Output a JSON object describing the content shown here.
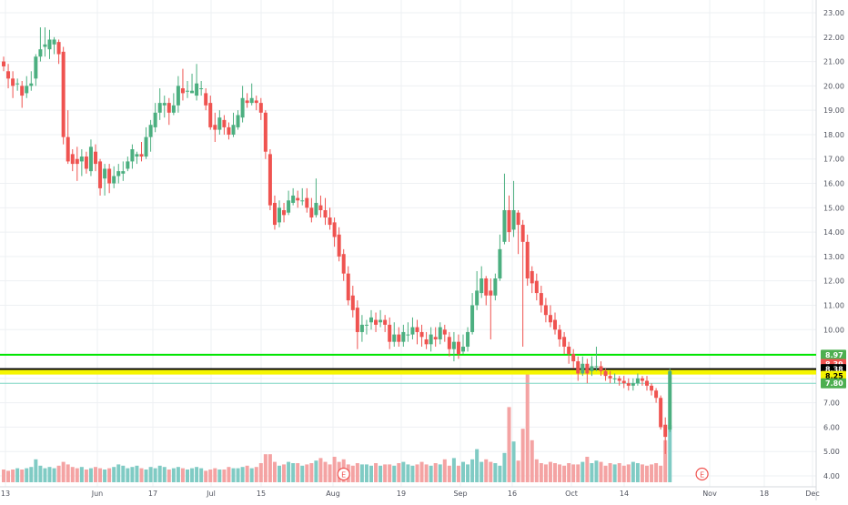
{
  "chart_data": {
    "type": "candlestick",
    "title": "",
    "xlabel": "",
    "ylabel": "",
    "ylim": [
      3.75,
      23.3
    ],
    "grid": true,
    "x_tick_labels": [
      "13",
      "Jun",
      "17",
      "Jul",
      "15",
      "Aug",
      "19",
      "Sep",
      "16",
      "Oct",
      "14",
      "Nov",
      "18",
      "Dec"
    ],
    "y_tick_labels": [
      "23.00",
      "22.00",
      "21.00",
      "20.00",
      "19.00",
      "18.00",
      "17.00",
      "16.00",
      "15.00",
      "14.00",
      "13.00",
      "12.00",
      "11.00",
      "10.00",
      "9.00",
      "8.00",
      "7.00",
      "6.00",
      "5.00",
      "4.00"
    ],
    "y_ticks": [
      23,
      22,
      21,
      20,
      19,
      18,
      17,
      16,
      15,
      14,
      13,
      12,
      11,
      10,
      9,
      8,
      7,
      6,
      5,
      4
    ],
    "candles": [
      [
        21.0,
        20.8,
        21.2,
        20.6
      ],
      [
        20.6,
        20.3,
        20.9,
        19.9
      ],
      [
        20.3,
        20.0,
        20.6,
        19.5
      ],
      [
        20.1,
        20.1,
        20.3,
        19.8
      ],
      [
        20.0,
        19.6,
        20.2,
        19.1
      ],
      [
        19.7,
        20.0,
        20.4,
        19.5
      ],
      [
        20.0,
        20.1,
        20.6,
        19.8
      ],
      [
        20.3,
        21.2,
        21.3,
        20.0
      ],
      [
        21.2,
        21.5,
        22.4,
        21.0
      ],
      [
        21.6,
        21.7,
        22.4,
        21.2
      ],
      [
        21.5,
        21.9,
        22.3,
        21.1
      ],
      [
        21.7,
        21.9,
        22.0,
        21.3
      ],
      [
        21.8,
        21.3,
        21.9,
        20.9
      ],
      [
        21.4,
        17.9,
        21.6,
        17.6
      ],
      [
        17.9,
        16.9,
        19.0,
        16.8
      ],
      [
        17.2,
        16.8,
        17.4,
        16.5
      ],
      [
        17.0,
        16.8,
        17.5,
        16.1
      ],
      [
        16.9,
        17.1,
        17.4,
        16.3
      ],
      [
        17.1,
        16.6,
        17.3,
        16.4
      ],
      [
        16.5,
        17.5,
        17.8,
        16.3
      ],
      [
        17.3,
        16.8,
        17.6,
        16.5
      ],
      [
        16.9,
        15.8,
        17.0,
        15.5
      ],
      [
        16.2,
        16.6,
        16.8,
        15.5
      ],
      [
        16.6,
        16.0,
        16.8,
        15.6
      ],
      [
        16.0,
        16.3,
        16.7,
        15.8
      ],
      [
        16.3,
        16.5,
        16.8,
        16.0
      ],
      [
        16.4,
        16.5,
        16.9,
        16.1
      ],
      [
        16.6,
        16.9,
        17.1,
        16.5
      ],
      [
        16.9,
        17.4,
        17.6,
        16.6
      ],
      [
        17.1,
        17.2,
        17.3,
        16.8
      ],
      [
        17.2,
        17.1,
        17.7,
        16.9
      ],
      [
        17.1,
        17.9,
        18.3,
        17.0
      ],
      [
        17.9,
        18.4,
        18.6,
        17.3
      ],
      [
        18.3,
        18.9,
        19.3,
        18.1
      ],
      [
        18.9,
        19.3,
        19.9,
        18.6
      ],
      [
        19.2,
        19.3,
        19.6,
        18.7
      ],
      [
        19.3,
        18.9,
        19.5,
        18.4
      ],
      [
        18.9,
        19.2,
        19.7,
        18.8
      ],
      [
        19.2,
        20.0,
        20.4,
        18.9
      ],
      [
        19.9,
        19.7,
        20.7,
        19.4
      ],
      [
        19.8,
        19.8,
        20.2,
        19.5
      ],
      [
        19.7,
        19.8,
        20.5,
        19.7
      ],
      [
        19.6,
        20.1,
        20.9,
        19.4
      ],
      [
        19.9,
        19.9,
        20.2,
        19.6
      ],
      [
        19.7,
        19.2,
        19.9,
        19.0
      ],
      [
        19.3,
        18.3,
        19.6,
        18.2
      ],
      [
        18.4,
        18.2,
        18.9,
        17.7
      ],
      [
        18.2,
        18.7,
        19.0,
        18.0
      ],
      [
        18.6,
        18.3,
        18.8,
        18.0
      ],
      [
        18.3,
        18.0,
        18.5,
        17.8
      ],
      [
        18.0,
        18.4,
        18.9,
        17.9
      ],
      [
        18.3,
        18.8,
        19.0,
        18.2
      ],
      [
        18.7,
        19.5,
        20.0,
        18.5
      ],
      [
        19.4,
        19.3,
        19.7,
        19.1
      ],
      [
        19.3,
        19.5,
        20.1,
        19.2
      ],
      [
        19.4,
        19.3,
        19.6,
        19.0
      ],
      [
        19.3,
        18.9,
        19.5,
        18.6
      ],
      [
        18.9,
        17.3,
        19.0,
        17.0
      ],
      [
        17.2,
        15.1,
        17.4,
        14.9
      ],
      [
        15.2,
        14.3,
        15.5,
        14.1
      ],
      [
        14.4,
        15.0,
        15.3,
        14.2
      ],
      [
        14.9,
        14.7,
        15.2,
        14.4
      ],
      [
        14.8,
        15.3,
        15.7,
        14.7
      ],
      [
        15.2,
        15.5,
        15.8,
        15.1
      ],
      [
        15.4,
        15.3,
        15.7,
        15.0
      ],
      [
        15.3,
        15.3,
        15.8,
        15.1
      ],
      [
        15.4,
        15.0,
        15.8,
        14.8
      ],
      [
        15.0,
        14.6,
        15.4,
        14.4
      ],
      [
        14.7,
        15.2,
        16.2,
        14.6
      ],
      [
        15.1,
        14.9,
        15.5,
        14.6
      ],
      [
        14.9,
        14.6,
        15.4,
        14.3
      ],
      [
        14.6,
        14.3,
        15.0,
        14.1
      ],
      [
        14.4,
        13.8,
        14.6,
        13.4
      ],
      [
        13.9,
        13.0,
        14.2,
        12.8
      ],
      [
        13.1,
        12.3,
        13.3,
        12.0
      ],
      [
        12.3,
        11.2,
        12.6,
        11.0
      ],
      [
        11.4,
        10.8,
        11.8,
        10.5
      ],
      [
        10.9,
        9.9,
        11.2,
        9.2
      ],
      [
        9.9,
        10.2,
        10.6,
        9.5
      ],
      [
        10.2,
        10.2,
        10.4,
        9.8
      ],
      [
        10.3,
        10.5,
        10.8,
        10.0
      ],
      [
        10.4,
        10.2,
        10.7,
        9.9
      ],
      [
        10.3,
        10.4,
        10.8,
        10.1
      ],
      [
        10.4,
        10.2,
        10.6,
        9.9
      ],
      [
        10.2,
        9.5,
        10.5,
        9.2
      ],
      [
        9.5,
        9.8,
        10.3,
        9.3
      ],
      [
        9.8,
        9.5,
        10.1,
        9.3
      ],
      [
        9.5,
        9.9,
        10.2,
        9.3
      ],
      [
        9.8,
        9.8,
        10.3,
        9.5
      ],
      [
        9.8,
        10.1,
        10.5,
        9.6
      ],
      [
        10.1,
        9.9,
        10.4,
        9.4
      ],
      [
        9.9,
        9.7,
        10.2,
        9.3
      ],
      [
        9.6,
        9.4,
        9.9,
        9.2
      ],
      [
        9.4,
        9.8,
        10.1,
        9.1
      ],
      [
        9.7,
        9.6,
        10.1,
        9.3
      ],
      [
        9.6,
        10.1,
        10.3,
        9.4
      ],
      [
        10.0,
        9.8,
        10.2,
        9.5
      ],
      [
        9.7,
        9.2,
        9.9,
        8.9
      ],
      [
        9.2,
        9.5,
        9.9,
        8.7
      ],
      [
        9.5,
        9.0,
        9.8,
        8.8
      ],
      [
        9.1,
        9.3,
        9.8,
        9.0
      ],
      [
        9.3,
        9.9,
        10.1,
        9.1
      ],
      [
        9.9,
        11.0,
        11.5,
        9.8
      ],
      [
        11.0,
        11.6,
        12.4,
        10.8
      ],
      [
        11.5,
        12.1,
        12.6,
        11.3
      ],
      [
        12.1,
        11.4,
        12.2,
        11.0
      ],
      [
        11.6,
        11.4,
        12.1,
        9.6
      ],
      [
        11.4,
        12.1,
        12.3,
        11.2
      ],
      [
        12.1,
        13.3,
        13.9,
        12.0
      ],
      [
        13.6,
        14.9,
        16.4,
        13.5
      ],
      [
        14.9,
        14.0,
        15.5,
        13.6
      ],
      [
        14.1,
        14.9,
        16.1,
        13.8
      ],
      [
        14.8,
        14.3,
        14.9,
        13.1
      ],
      [
        14.3,
        13.6,
        14.5,
        9.3
      ],
      [
        13.6,
        12.1,
        13.9,
        11.8
      ],
      [
        12.4,
        11.9,
        12.6,
        11.5
      ],
      [
        12.0,
        11.5,
        12.3,
        11.2
      ],
      [
        11.5,
        11.0,
        11.8,
        10.7
      ],
      [
        11.0,
        10.6,
        11.3,
        10.3
      ],
      [
        10.6,
        10.3,
        11.0,
        10.1
      ],
      [
        10.4,
        10.0,
        10.7,
        9.8
      ],
      [
        10.0,
        9.6,
        10.2,
        9.3
      ],
      [
        9.7,
        9.3,
        9.9,
        9.0
      ],
      [
        9.3,
        9.0,
        9.5,
        8.6
      ],
      [
        9.0,
        8.7,
        9.2,
        8.4
      ],
      [
        8.7,
        8.2,
        8.9,
        7.9
      ],
      [
        8.2,
        8.6,
        8.9,
        8.1
      ],
      [
        8.6,
        8.2,
        8.8,
        7.8
      ],
      [
        8.3,
        8.5,
        8.9,
        8.1
      ],
      [
        8.5,
        8.5,
        9.3,
        8.3
      ],
      [
        8.5,
        8.3,
        8.7,
        8.1
      ],
      [
        8.3,
        8.1,
        8.4,
        7.9
      ],
      [
        8.1,
        8.0,
        8.3,
        7.8
      ],
      [
        8.0,
        8.0,
        8.2,
        7.8
      ],
      [
        8.0,
        7.9,
        8.1,
        7.7
      ],
      [
        7.9,
        7.8,
        8.1,
        7.6
      ],
      [
        7.8,
        7.7,
        8.0,
        7.5
      ],
      [
        7.7,
        7.8,
        8.0,
        7.5
      ],
      [
        7.8,
        8.0,
        8.2,
        7.7
      ],
      [
        8.0,
        7.9,
        8.1,
        7.7
      ],
      [
        7.9,
        7.7,
        8.1,
        7.5
      ],
      [
        7.7,
        7.5,
        7.8,
        7.3
      ],
      [
        7.5,
        7.2,
        7.6,
        7.0
      ],
      [
        7.2,
        6.0,
        7.3,
        5.9
      ],
      [
        6.1,
        5.6,
        6.4,
        4.9
      ],
      [
        5.9,
        8.3,
        8.4,
        5.8
      ]
    ],
    "volume": [
      1,
      0.9,
      1,
      1.1,
      1,
      1.1,
      1.2,
      1.8,
      1.3,
      1.1,
      1.2,
      1.1,
      1.3,
      1.6,
      1.4,
      1.2,
      1.1,
      1.2,
      1,
      1.1,
      1.2,
      1.1,
      1,
      1.1,
      1.2,
      1.4,
      1.3,
      1.1,
      1.2,
      1.3,
      1.1,
      1,
      1.2,
      1.1,
      1.3,
      1.2,
      1,
      1.1,
      1.2,
      1.1,
      1,
      1.1,
      1.2,
      1.1,
      0.9,
      1,
      1.1,
      1,
      1,
      1.2,
      1.1,
      1.1,
      1.2,
      1.3,
      1.1,
      1.2,
      1.5,
      2.2,
      2.2,
      1.6,
      1.3,
      1.4,
      1.6,
      1.5,
      1.5,
      1.3,
      1.4,
      1.5,
      1.7,
      1.9,
      1.6,
      1.4,
      2,
      1.6,
      1.8,
      1.4,
      1.3,
      1.5,
      1.4,
      1.4,
      1.3,
      1.5,
      1.3,
      1.4,
      1.4,
      1.3,
      1.5,
      1.6,
      1.4,
      1.3,
      1.4,
      1.6,
      1.4,
      1.3,
      1.5,
      1.4,
      1.8,
      1.3,
      1.9,
      1.3,
      1.6,
      1.4,
      1.8,
      2.6,
      1.6,
      1.8,
      1.6,
      1.5,
      1.3,
      2.3,
      5.9,
      3.2,
      1.7,
      4.2,
      8.5,
      3.3,
      1.8,
      1.5,
      1.4,
      1.6,
      1.5,
      1.4,
      1.3,
      1.5,
      1.4,
      1.4,
      1.6,
      2,
      1.5,
      1.7,
      1.6,
      1.3,
      1.5,
      1.4,
      1.5,
      1.3,
      1.4,
      1.6,
      1.5,
      1.4,
      1.3,
      1.4,
      1.5,
      1.3,
      3.3,
      4.5,
      8.2
    ],
    "horizontal_lines": [
      {
        "price": 8.97,
        "color": "#00e600",
        "label": "8.97"
      },
      {
        "price": 8.38,
        "color": "#000000",
        "label": "8.38"
      },
      {
        "price": 8.25,
        "color": "#f5f500",
        "label": "8.25"
      },
      {
        "price": 7.8,
        "color": "#7fd6c4",
        "label": "7.80"
      }
    ],
    "price_labels": [
      {
        "price": 8.97,
        "text": "8.97",
        "bg": "#4caf50",
        "fg": "#ffffff"
      },
      {
        "price": 8.59,
        "text": "8.39",
        "bg": "#ef5350",
        "fg": "#ffffff"
      },
      {
        "price": 8.38,
        "text": "8.38",
        "bg": "#000000",
        "fg": "#ffffff"
      },
      {
        "price": 8.1,
        "text": "8.25",
        "bg": "#f5f500",
        "fg": "#000000"
      },
      {
        "price": 7.8,
        "text": "7.80",
        "bg": "#4caf50",
        "fg": "#ffffff"
      }
    ],
    "earnings_markers": [
      "E",
      "E"
    ],
    "colors": {
      "up": "#26a69a",
      "up_body": "#4caf80",
      "down": "#ef5350",
      "up_vol": "#80cbc4",
      "down_vol": "#f4a3a3",
      "grid": "#eef0f3"
    }
  }
}
